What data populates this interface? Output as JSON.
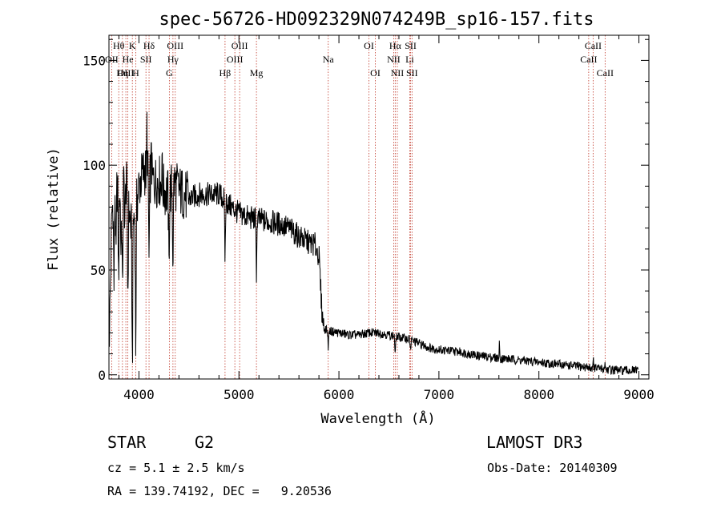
{
  "chart_data": {
    "type": "line",
    "title": "spec-56726-HD092329N074249B_sp16-157.fits",
    "xlabel": "Wavelength (Å)",
    "ylabel": "Flux (relative)",
    "xlim": [
      3700,
      9100
    ],
    "ylim": [
      -2,
      162
    ],
    "xticks": [
      4000,
      5000,
      6000,
      7000,
      8000,
      9000
    ],
    "yticks": [
      0,
      50,
      100,
      150
    ],
    "series": [
      {
        "name": "flux",
        "anchors": [
          [
            3700,
            10
          ],
          [
            3730,
            80
          ],
          [
            3770,
            90
          ],
          [
            3820,
            88
          ],
          [
            3870,
            92
          ],
          [
            3920,
            70
          ],
          [
            3970,
            78
          ],
          [
            4000,
            90
          ],
          [
            4050,
            98
          ],
          [
            4100,
            95
          ],
          [
            4150,
            92
          ],
          [
            4200,
            93
          ],
          [
            4250,
            88
          ],
          [
            4300,
            86
          ],
          [
            4350,
            92
          ],
          [
            4400,
            88
          ],
          [
            4450,
            86
          ],
          [
            4500,
            84
          ],
          [
            4600,
            86
          ],
          [
            4700,
            86
          ],
          [
            4800,
            86
          ],
          [
            4850,
            84
          ],
          [
            4900,
            81
          ],
          [
            4950,
            79
          ],
          [
            5000,
            77
          ],
          [
            5100,
            75
          ],
          [
            5200,
            74
          ],
          [
            5300,
            73
          ],
          [
            5400,
            72
          ],
          [
            5500,
            70
          ],
          [
            5600,
            66
          ],
          [
            5700,
            63
          ],
          [
            5760,
            62
          ],
          [
            5800,
            57
          ],
          [
            5830,
            30
          ],
          [
            5850,
            22
          ],
          [
            5900,
            21
          ],
          [
            6000,
            20
          ],
          [
            6100,
            19
          ],
          [
            6200,
            19
          ],
          [
            6300,
            20
          ],
          [
            6400,
            20
          ],
          [
            6500,
            19
          ],
          [
            6600,
            18
          ],
          [
            6700,
            17
          ],
          [
            6800,
            15
          ],
          [
            6900,
            13
          ],
          [
            7000,
            12
          ],
          [
            7200,
            11
          ],
          [
            7400,
            9
          ],
          [
            7600,
            8
          ],
          [
            7800,
            7
          ],
          [
            8000,
            6
          ],
          [
            8200,
            5
          ],
          [
            8400,
            4
          ],
          [
            8600,
            3
          ],
          [
            8800,
            2
          ],
          [
            9000,
            2
          ]
        ],
        "absorption": [
          [
            3733,
            2
          ],
          [
            3750,
            45
          ],
          [
            3770,
            40
          ],
          [
            3797,
            48
          ],
          [
            3820,
            30
          ],
          [
            3835,
            55
          ],
          [
            3860,
            20
          ],
          [
            3889,
            50
          ],
          [
            3934,
            72
          ],
          [
            3968,
            68
          ],
          [
            4101,
            45
          ],
          [
            4300,
            35
          ],
          [
            4340,
            40
          ],
          [
            4861,
            30
          ],
          [
            5175,
            25
          ],
          [
            5893,
            8
          ],
          [
            6563,
            10
          ],
          [
            6717,
            5
          ]
        ],
        "spikes": [
          [
            4080,
            25
          ],
          [
            4125,
            22
          ],
          [
            4230,
            18
          ],
          [
            7605,
            8
          ],
          [
            8545,
            5
          ],
          [
            8660,
            5
          ]
        ]
      }
    ],
    "lines": [
      {
        "label": "Hθ",
        "wave": 3798,
        "row": 0
      },
      {
        "label": "OII",
        "wave": 3727,
        "row": 1
      },
      {
        "label": "OIII",
        "wave": 3869,
        "row": 2
      },
      {
        "label": "He",
        "wave": 3889,
        "row": 1
      },
      {
        "label": "K",
        "wave": 3934,
        "row": 0
      },
      {
        "label": "Hη",
        "wave": 3835,
        "row": 2
      },
      {
        "label": "H",
        "wave": 3968,
        "row": 2
      },
      {
        "label": "Hδ",
        "wave": 4101,
        "row": 0
      },
      {
        "label": "SII",
        "wave": 4070,
        "row": 1
      },
      {
        "label": "OIII",
        "wave": 4363,
        "row": 0
      },
      {
        "label": "Hγ",
        "wave": 4340,
        "row": 1
      },
      {
        "label": "G",
        "wave": 4304,
        "row": 2
      },
      {
        "label": "OIII",
        "wave": 5007,
        "row": 0
      },
      {
        "label": "OIII",
        "wave": 4959,
        "row": 1
      },
      {
        "label": "Hβ",
        "wave": 4861,
        "row": 2
      },
      {
        "label": "Mg",
        "wave": 5175,
        "row": 2
      },
      {
        "label": "Na",
        "wave": 5893,
        "row": 1
      },
      {
        "label": "OI",
        "wave": 6300,
        "row": 0
      },
      {
        "label": "OI",
        "wave": 6364,
        "row": 2
      },
      {
        "label": "Hα",
        "wave": 6563,
        "row": 0
      },
      {
        "label": "NII",
        "wave": 6548,
        "row": 1
      },
      {
        "label": "NII",
        "wave": 6584,
        "row": 2
      },
      {
        "label": "SII",
        "wave": 6717,
        "row": 0
      },
      {
        "label": "Li",
        "wave": 6708,
        "row": 1
      },
      {
        "label": "SII",
        "wave": 6731,
        "row": 2
      },
      {
        "label": "CaII",
        "wave": 8542,
        "row": 0
      },
      {
        "label": "CaII",
        "wave": 8498,
        "row": 1
      },
      {
        "label": "CaII",
        "wave": 8662,
        "row": 2
      }
    ]
  },
  "info": {
    "class": "STAR",
    "subclass": "G2",
    "survey": "LAMOST DR3",
    "cz": "cz = 5.1 ± 2.5 km/s",
    "obs_date": "Obs-Date: 20140309",
    "radec": "RA = 139.74192, DEC =   9.20536"
  }
}
